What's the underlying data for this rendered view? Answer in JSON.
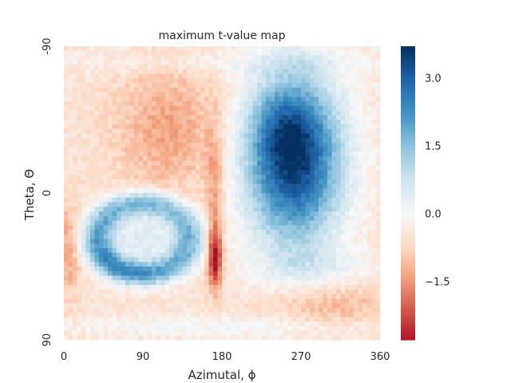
{
  "chart_data": {
    "type": "heatmap",
    "title": "maximum t-value map",
    "xlabel": "Azimutal, ϕ",
    "ylabel": "Theta, Θ",
    "x_ticks": [
      "0",
      "90",
      "180",
      "270",
      "360"
    ],
    "y_ticks": [
      "-90",
      "0",
      "90"
    ],
    "xlim": [
      0,
      360
    ],
    "ylim": [
      -90,
      90
    ],
    "colorbar": {
      "cmap": "RdBu_r",
      "vmin": -2.8,
      "vmax": 3.7,
      "ticks": [
        3.0,
        1.5,
        0.0,
        -1.5
      ],
      "tick_labels": [
        "3.0",
        "1.5",
        "0.0",
        "−1.5"
      ]
    },
    "grid": false,
    "features": [
      {
        "name": "left-upper negative lobe",
        "center_phi": 120,
        "center_theta": -35,
        "peak": -1.4
      },
      {
        "name": "right-upper positive lobe",
        "center_phi": 265,
        "center_theta": -18,
        "peak": 3.5
      },
      {
        "name": "left-lower positive ring",
        "center_phi": 90,
        "center_theta": 30,
        "peak": 2.5
      },
      {
        "name": "narrow negative streak",
        "center_phi": 172,
        "center_theta": 40,
        "peak": -2.6
      },
      {
        "name": "left-edge negative band",
        "center_phi": 5,
        "center_theta": 30,
        "peak": -1.3
      }
    ]
  }
}
